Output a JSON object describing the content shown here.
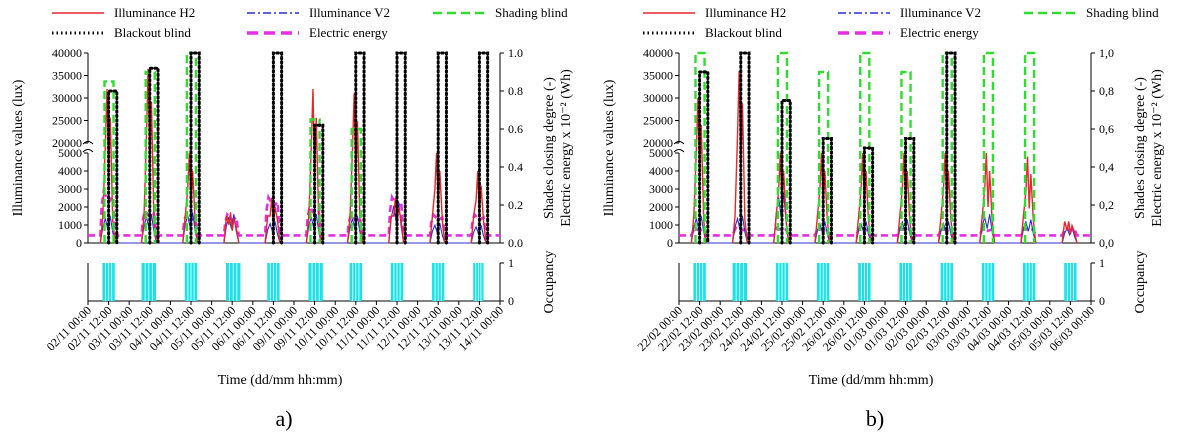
{
  "chart_data": [
    {
      "type": "line",
      "panel_caption": "a)",
      "xlabel": "Time (dd/mm hh:mm)",
      "ylabel_left": "Illuminance values (lux)",
      "ylabel_right": "Shades closing degree (-)",
      "ylabel_right2": "Electric energy x 10⁻² (Wh)",
      "ylabel_occupancy": "Occupancy",
      "y_left_ticks": [
        "0",
        "1000",
        "2000",
        "3000",
        "4000",
        "5000",
        "20000",
        "25000",
        "30000",
        "35000",
        "40000"
      ],
      "y_right_ticks": [
        "0.0",
        "0.2",
        "0.4",
        "0.6",
        "0.8",
        "1.0"
      ],
      "occupancy_ticks": [
        "0",
        "1"
      ],
      "x_tick_labels": [
        "02/11 00:00",
        "02/11 12:00",
        "03/11 00:00",
        "03/11 12:00",
        "04/11 00:00",
        "04/11 12:00",
        "05/11 00:00",
        "05/11 12:00",
        "06/11 00:00",
        "06/11 12:00",
        "09/11 00:00",
        "09/11 12:00",
        "10/11 00:00",
        "10/11 12:00",
        "11/11 00:00",
        "11/11 12:00",
        "12/11 00:00",
        "12/11 12:00",
        "13/11 00:00",
        "13/11 12:00",
        "14/11 00:00"
      ],
      "legend": [
        "Illuminance H2",
        "Illuminance V2",
        "Shading blind",
        "Blackout blind",
        "Electric energy"
      ],
      "colors": {
        "h2": "#e8262b",
        "v2": "#2b2fd1",
        "shading": "#2fdc2f",
        "blackout": "#000000",
        "energy": "#e62ee6",
        "occupancy": "#19e3e8"
      },
      "days": [
        {
          "h2_peak": 32000,
          "v2_peak": 1500,
          "shading": 0.85,
          "blackout": 0.8,
          "energy": 0.27,
          "occupancy": [
            0.35,
            0.65
          ]
        },
        {
          "h2_peak": 36500,
          "v2_peak": 1600,
          "shading": 0.9,
          "blackout": 0.92,
          "energy": 0.17,
          "occupancy": [
            0.3,
            0.65
          ]
        },
        {
          "h2_peak": 5000,
          "v2_peak": 1700,
          "shading": 1.0,
          "blackout": 1.0,
          "energy": 0.15,
          "occupancy": [
            0.35,
            0.65
          ]
        },
        {
          "h2_peak": 1700,
          "v2_peak": 1600,
          "shading": 0.0,
          "blackout": 0.0,
          "energy": 0.15,
          "occupancy": [
            0.35,
            0.7
          ]
        },
        {
          "h2_peak": 2500,
          "v2_peak": 1200,
          "shading": 0.0,
          "blackout": 1.0,
          "energy": 0.24,
          "occupancy": [
            0.35,
            0.65
          ]
        },
        {
          "h2_peak": 32000,
          "v2_peak": 1600,
          "shading": 0.65,
          "blackout": 0.62,
          "energy": 0.19,
          "occupancy": [
            0.35,
            0.7
          ]
        },
        {
          "h2_peak": 31000,
          "v2_peak": 1500,
          "shading": 0.6,
          "blackout": 1.0,
          "energy": 0.15,
          "occupancy": [
            0.35,
            0.65
          ]
        },
        {
          "h2_peak": 2500,
          "v2_peak": 2300,
          "shading": 0.0,
          "blackout": 1.0,
          "energy": 0.24,
          "occupancy": [
            0.35,
            0.65
          ]
        },
        {
          "h2_peak": 5000,
          "v2_peak": 1100,
          "shading": 0.0,
          "blackout": 1.0,
          "energy": 0.15,
          "occupancy": [
            0.35,
            0.65
          ]
        },
        {
          "h2_peak": 4000,
          "v2_peak": 1000,
          "shading": 0.0,
          "blackout": 1.0,
          "energy": 0.15,
          "occupancy": [
            0.35,
            0.6
          ]
        }
      ]
    },
    {
      "type": "line",
      "panel_caption": "b)",
      "xlabel": "Time (dd/mm hh:mm)",
      "ylabel_left": "Illuminance values (lux)",
      "ylabel_right": "Shades closing degree (-)",
      "ylabel_right2": "Electric energy x 10⁻² (Wh)",
      "ylabel_occupancy": "Occupancy",
      "y_left_ticks": [
        "0",
        "1000",
        "2000",
        "3000",
        "4000",
        "5000",
        "20000",
        "25000",
        "30000",
        "35000",
        "40000"
      ],
      "y_right_ticks": [
        "0,0",
        "0,2",
        "0,4",
        "0,6",
        "0,8",
        "1,0"
      ],
      "occupancy_ticks": [
        "0",
        "1"
      ],
      "x_tick_labels": [
        "22/02 00:00",
        "22/02 12:00",
        "23/02 00:00",
        "23/02 12:00",
        "24/02 00:00",
        "24/02 12:00",
        "25/02 00:00",
        "25/02 12:00",
        "26/02 00:00",
        "26/02 12:00",
        "01/03 00:00",
        "01/03 12:00",
        "02/03 00:00",
        "02/03 12:00",
        "03/03 00:00",
        "03/03 12:00",
        "04/03 00:00",
        "04/03 12:00",
        "05/03 00:00",
        "05/03 12:00",
        "06/03 00:00"
      ],
      "legend": [
        "Illuminance H2",
        "Illuminance V2",
        "Shading blind",
        "Blackout blind",
        "Electric energy"
      ],
      "colors": {
        "h2": "#e8262b",
        "v2": "#2b2fd1",
        "shading": "#2fdc2f",
        "blackout": "#000000",
        "energy": "#e62ee6",
        "occupancy": "#19e3e8"
      },
      "days": [
        {
          "h2_peak": 30000,
          "v2_peak": 1500,
          "shading": 1.0,
          "blackout": 0.9,
          "energy": 0.08,
          "occupancy": [
            0.35,
            0.65
          ]
        },
        {
          "h2_peak": 36000,
          "v2_peak": 1500,
          "shading": 0.0,
          "blackout": 1.0,
          "energy": 0.08,
          "occupancy": [
            0.3,
            0.65
          ]
        },
        {
          "h2_peak": 5000,
          "v2_peak": 2800,
          "shading": 1.0,
          "blackout": 0.75,
          "energy": 0.08,
          "occupancy": [
            0.35,
            0.65
          ]
        },
        {
          "h2_peak": 5000,
          "v2_peak": 1200,
          "shading": 0.9,
          "blackout": 0.55,
          "energy": 0.08,
          "occupancy": [
            0.35,
            0.65
          ]
        },
        {
          "h2_peak": 5000,
          "v2_peak": 1200,
          "shading": 1.0,
          "blackout": 0.5,
          "energy": 0.08,
          "occupancy": [
            0.35,
            0.65
          ]
        },
        {
          "h2_peak": 5000,
          "v2_peak": 1300,
          "shading": 0.9,
          "blackout": 0.55,
          "energy": 0.08,
          "occupancy": [
            0.35,
            0.65
          ]
        },
        {
          "h2_peak": 5000,
          "v2_peak": 1200,
          "shading": 1.0,
          "blackout": 1.0,
          "energy": 0.08,
          "occupancy": [
            0.35,
            0.65
          ]
        },
        {
          "h2_peak": 5000,
          "v2_peak": 1600,
          "shading": 1.0,
          "blackout": 0.0,
          "energy": 0.08,
          "occupancy": [
            0.35,
            0.65
          ]
        },
        {
          "h2_peak": 4800,
          "v2_peak": 1300,
          "shading": 1.0,
          "blackout": 0.0,
          "energy": 0.08,
          "occupancy": [
            0.35,
            0.65
          ]
        },
        {
          "h2_peak": 1200,
          "v2_peak": 900,
          "shading": 0.0,
          "blackout": 0.0,
          "energy": 0.08,
          "occupancy": [
            0.35,
            0.65
          ]
        }
      ]
    }
  ]
}
